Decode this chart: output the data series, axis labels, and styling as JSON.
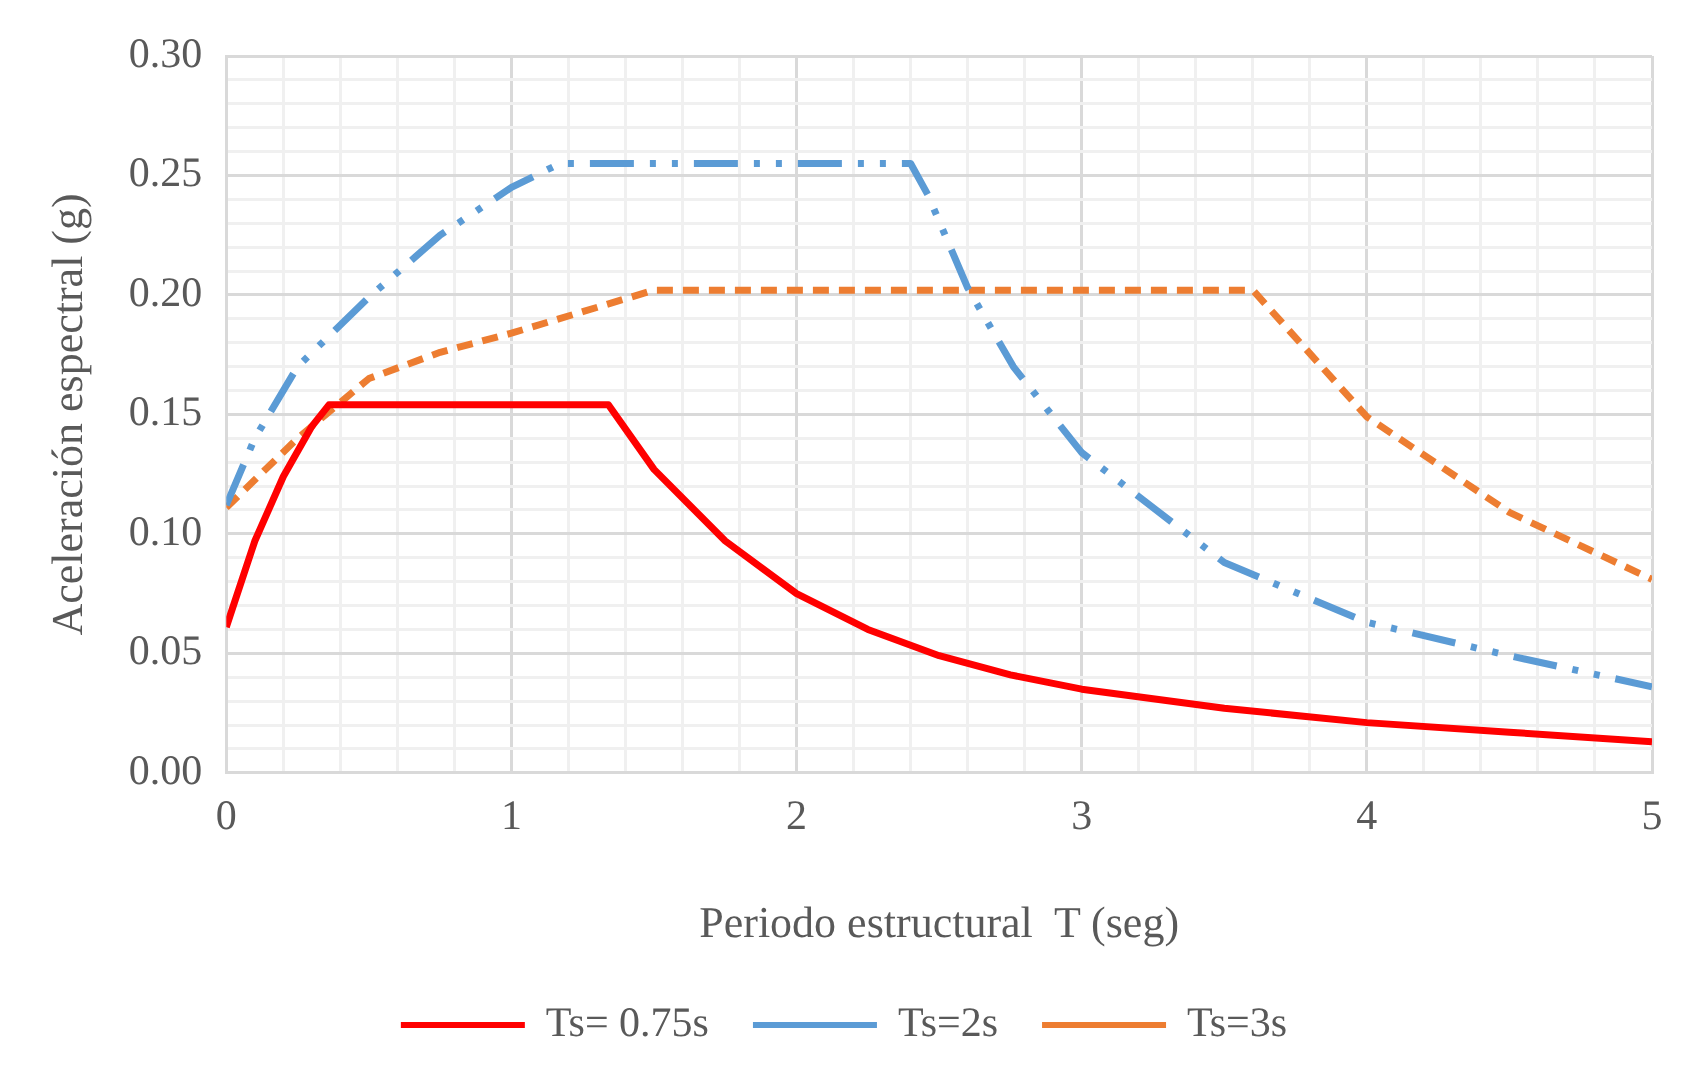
{
  "chart_data": {
    "type": "line",
    "xlabel": "Periodo estructural  T (seg)",
    "ylabel": "Aceleración espectral (g)",
    "xlim": [
      0,
      5
    ],
    "ylim": [
      0,
      0.3
    ],
    "xticks": [
      0,
      {
        "value": 0.2,
        "label": null
      },
      {
        "value": 0.4,
        "label": null
      },
      {
        "value": 0.6,
        "label": null
      },
      {
        "value": 0.8,
        "label": null
      },
      1,
      {
        "value": 1.2,
        "label": null
      },
      {
        "value": 1.4,
        "label": null
      },
      {
        "value": 1.6,
        "label": null
      },
      {
        "value": 1.8,
        "label": null
      },
      2,
      {
        "value": 2.2,
        "label": null
      },
      {
        "value": 2.4,
        "label": null
      },
      {
        "value": 2.6,
        "label": null
      },
      {
        "value": 2.8,
        "label": null
      },
      3,
      {
        "value": 3.2,
        "label": null
      },
      {
        "value": 3.4,
        "label": null
      },
      {
        "value": 3.6,
        "label": null
      },
      {
        "value": 3.8,
        "label": null
      },
      4,
      {
        "value": 4.2,
        "label": null
      },
      {
        "value": 4.4,
        "label": null
      },
      {
        "value": 4.6,
        "label": null
      },
      {
        "value": 4.8,
        "label": null
      },
      5
    ],
    "yticks": [
      {
        "value": 0,
        "label": "0.00"
      },
      {
        "value": 0.01,
        "label": null
      },
      {
        "value": 0.02,
        "label": null
      },
      {
        "value": 0.03,
        "label": null
      },
      {
        "value": 0.04,
        "label": null
      },
      {
        "value": 0.05,
        "label": "0.05"
      },
      {
        "value": 0.06,
        "label": null
      },
      {
        "value": 0.07,
        "label": null
      },
      {
        "value": 0.08,
        "label": null
      },
      {
        "value": 0.09,
        "label": null
      },
      {
        "value": 0.1,
        "label": "0.10"
      },
      {
        "value": 0.11,
        "label": null
      },
      {
        "value": 0.12,
        "label": null
      },
      {
        "value": 0.13,
        "label": null
      },
      {
        "value": 0.14,
        "label": null
      },
      {
        "value": 0.15,
        "label": "0.15"
      },
      {
        "value": 0.16,
        "label": null
      },
      {
        "value": 0.17,
        "label": null
      },
      {
        "value": 0.18,
        "label": null
      },
      {
        "value": 0.19,
        "label": null
      },
      {
        "value": 0.2,
        "label": "0.20"
      },
      {
        "value": 0.21,
        "label": null
      },
      {
        "value": 0.22,
        "label": null
      },
      {
        "value": 0.23,
        "label": null
      },
      {
        "value": 0.24,
        "label": null
      },
      {
        "value": 0.25,
        "label": "0.25"
      },
      {
        "value": 0.26,
        "label": null
      },
      {
        "value": 0.27,
        "label": null
      },
      {
        "value": 0.28,
        "label": null
      },
      {
        "value": 0.29,
        "label": null
      },
      {
        "value": 0.3,
        "label": "0.30"
      }
    ],
    "grid": true,
    "legend": "bottom",
    "marker": "none",
    "series": [
      {
        "name": "Ts= 0.75s",
        "color": "#ff0000",
        "line_style": "solid",
        "x": [
          0,
          0.1,
          0.2,
          0.3,
          0.36,
          1.34,
          1.5,
          1.75,
          2,
          2.25,
          2.5,
          2.75,
          3,
          3.5,
          4,
          4.5,
          5
        ],
        "values": [
          0.061,
          0.097,
          0.124,
          0.145,
          0.154,
          0.154,
          0.127,
          0.097,
          0.075,
          0.06,
          0.049,
          0.041,
          0.035,
          0.027,
          0.021,
          0.017,
          0.013
        ]
      },
      {
        "name": "Ts=2s",
        "color": "#5b9bd5",
        "line_style": "dashdotdot",
        "x": [
          0,
          0.1,
          0.25,
          0.5,
          0.75,
          1,
          1.17,
          2.4,
          2.46,
          2.6,
          2.76,
          3,
          3.5,
          4,
          4.5,
          5
        ],
        "values": [
          0.112,
          0.14,
          0.17,
          0.199,
          0.225,
          0.245,
          0.255,
          0.255,
          0.242,
          0.203,
          0.17,
          0.134,
          0.088,
          0.063,
          0.049,
          0.036
        ]
      },
      {
        "name": "Ts=3s",
        "color": "#ed7d31",
        "line_style": "dashed",
        "x": [
          0,
          0.25,
          0.5,
          0.75,
          1,
          1.25,
          1.5,
          3.6,
          4,
          4.5,
          5
        ],
        "values": [
          0.111,
          0.14,
          0.165,
          0.176,
          0.184,
          0.193,
          0.202,
          0.202,
          0.149,
          0.109,
          0.081
        ]
      }
    ]
  }
}
